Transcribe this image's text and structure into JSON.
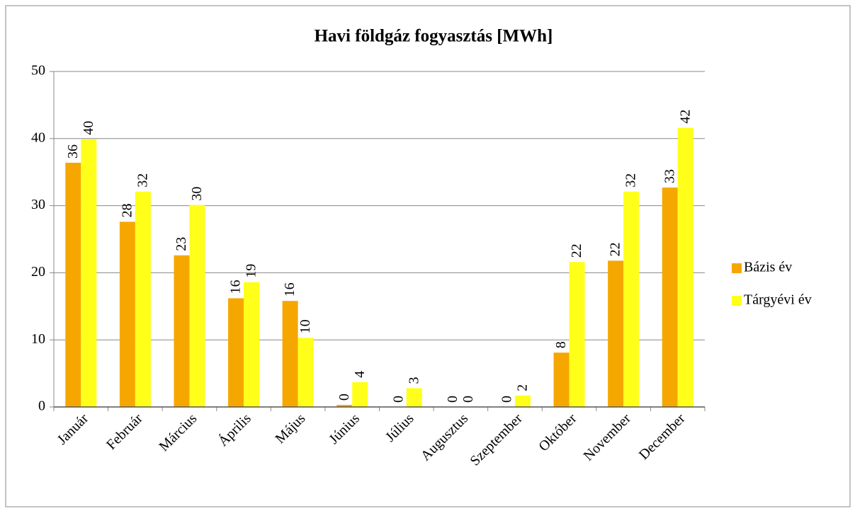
{
  "chart_data": {
    "type": "bar",
    "title": "Havi  földgáz fogyasztás [MWh]",
    "categories": [
      "Január",
      "Február",
      "Március",
      "Április",
      "Május",
      "Június",
      "Július",
      "Augusztus",
      "Szeptember",
      "Október",
      "November",
      "December"
    ],
    "series": [
      {
        "name": "Bázis év",
        "color": "#f5a700",
        "values": [
          36.4,
          27.6,
          22.6,
          16.2,
          15.8,
          0.3,
          0,
          0,
          0,
          8.1,
          21.8,
          32.7
        ],
        "value_labels": [
          "36",
          "28",
          "23",
          "16",
          "16",
          "0",
          "0",
          "0",
          "0",
          "8",
          "22",
          "33"
        ]
      },
      {
        "name": "Tárgyévi év",
        "color": "#ffff1a",
        "values": [
          39.9,
          32.1,
          30.1,
          18.6,
          10.3,
          3.7,
          2.8,
          0,
          1.7,
          21.6,
          32.1,
          41.6
        ],
        "value_labels": [
          "40",
          "32",
          "30",
          "19",
          "10",
          "4",
          "3",
          "0",
          "2",
          "22",
          "32",
          "42"
        ]
      }
    ],
    "ylim": [
      0,
      50
    ],
    "yticks": [
      0,
      10,
      20,
      30,
      40,
      50
    ],
    "grid": true,
    "legend": "right"
  }
}
